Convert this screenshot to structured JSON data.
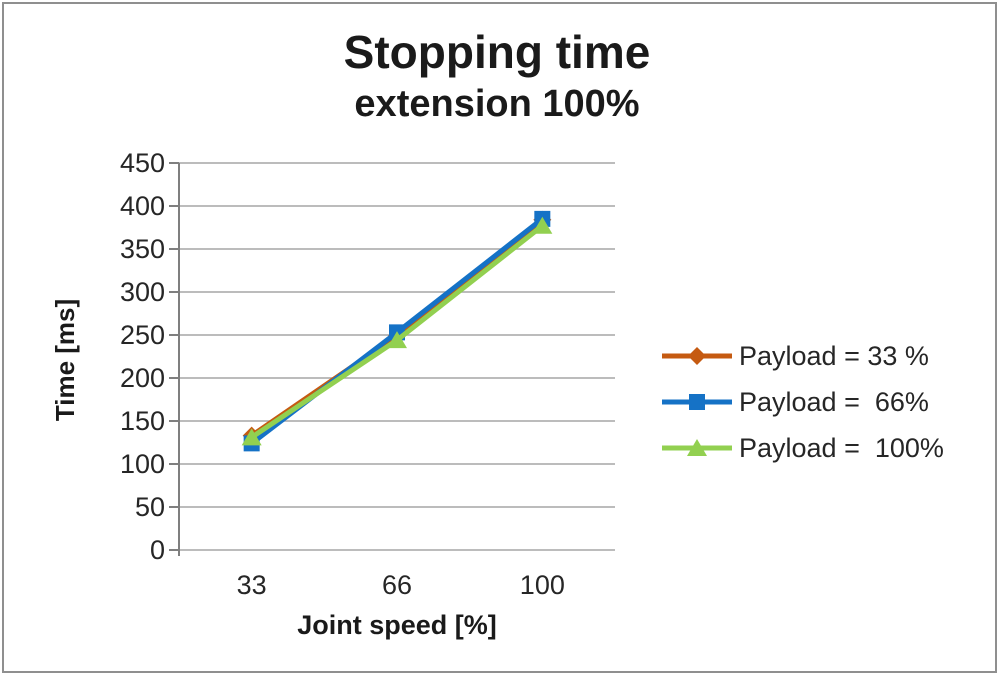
{
  "window": {
    "background": "#ffffff",
    "border_color": "#8f8f8f"
  },
  "title": "Stopping time",
  "subtitle": "extension 100%",
  "chart_data": {
    "type": "line",
    "title": "Stopping time",
    "subtitle": "extension 100%",
    "categories": [
      "33",
      "66",
      "100"
    ],
    "xlabel": "Joint speed [%]",
    "ylabel": "Time [ms]",
    "ylim": [
      0,
      450
    ],
    "y_ticks": [
      450,
      400,
      350,
      300,
      250,
      200,
      150,
      100,
      50,
      0
    ],
    "grid": true,
    "legend_position": "right",
    "series": [
      {
        "name": "Payload = 33 %",
        "values": [
          133,
          249,
          384
        ],
        "color": "#C55A11",
        "marker": "diamond"
      },
      {
        "name": "Payload =  66%",
        "values": [
          124,
          253,
          385
        ],
        "color": "#1572C6",
        "marker": "square"
      },
      {
        "name": "Payload =  100%",
        "values": [
          131,
          244,
          377
        ],
        "color": "#92D050",
        "marker": "triangle"
      }
    ]
  },
  "colors": {
    "gridline": "#A6A6A6",
    "axis_line": "#7F7F7F",
    "text": "#262626"
  }
}
